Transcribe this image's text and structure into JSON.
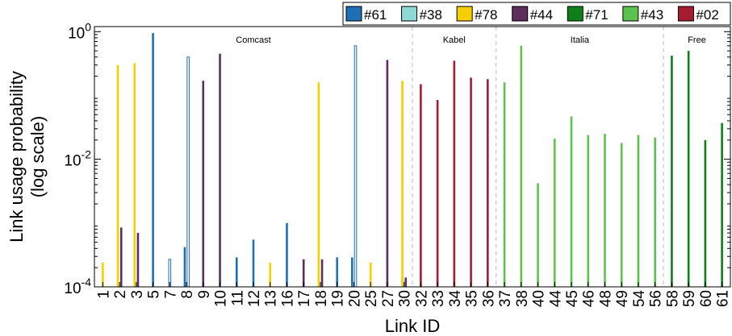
{
  "chart_data": {
    "type": "bar",
    "xlabel": "Link ID",
    "ylabel_lines": [
      "Link usage probability",
      "(log scale)"
    ],
    "yscale": "log",
    "ylim": [
      0.0001,
      1.2
    ],
    "y_ticks": [
      {
        "value": 0.0001,
        "base": "10",
        "exp": "-4"
      },
      {
        "value": 0.01,
        "base": "10",
        "exp": "-2"
      },
      {
        "value": 1,
        "base": "10",
        "exp": "0"
      }
    ],
    "categories": [
      "1",
      "2",
      "3",
      "5",
      "7",
      "8",
      "9",
      "10",
      "11",
      "12",
      "13",
      "16",
      "17",
      "18",
      "19",
      "20",
      "25",
      "27",
      "30",
      "32",
      "33",
      "34",
      "35",
      "36",
      "37",
      "38",
      "40",
      "44",
      "45",
      "46",
      "48",
      "49",
      "54",
      "56",
      "58",
      "59",
      "60",
      "61"
    ],
    "regions": [
      {
        "label": "Comcast",
        "start": "1",
        "end": "30"
      },
      {
        "label": "Kabel",
        "start": "32",
        "end": "36"
      },
      {
        "label": "Italia",
        "start": "37",
        "end": "56"
      },
      {
        "label": "Free",
        "start": "58",
        "end": "61"
      }
    ],
    "series": [
      {
        "name": "#61",
        "color": "#1f6fb4",
        "fill": "solid",
        "values": {
          "5": 0.95,
          "8": 0.00042,
          "11": 0.00029,
          "12": 0.00055,
          "16": 0.001,
          "19": 0.00029,
          "20": 0.00029
        }
      },
      {
        "name": "#38",
        "color": "#1f6fb4",
        "fill": "hollow",
        "values": {
          "7": 0.00027,
          "8": 0.4,
          "20": 0.6
        }
      },
      {
        "name": "#78",
        "color": "#f5d000",
        "fill": "solid",
        "values": {
          "1": 0.00024,
          "2": 0.3,
          "3": 0.32,
          "13": 0.00024,
          "18": 0.16,
          "25": 0.00024,
          "30": 0.17
        }
      },
      {
        "name": "#44",
        "color": "#5b2e5b",
        "fill": "solid",
        "values": {
          "2": 0.00085,
          "3": 0.0007,
          "9": 0.17,
          "10": 0.45,
          "17": 0.00027,
          "18": 0.00027,
          "27": 0.36,
          "30": 0.00014
        }
      },
      {
        "name": "#71",
        "color": "#0f7f1a",
        "fill": "solid",
        "values": {
          "58": 0.42,
          "59": 0.5,
          "60": 0.02,
          "61": 0.037
        }
      },
      {
        "name": "#43",
        "color": "#5cc24e",
        "fill": "solid",
        "values": {
          "37": 0.16,
          "38": 0.6,
          "40": 0.0042,
          "44": 0.021,
          "45": 0.047,
          "46": 0.024,
          "48": 0.025,
          "49": 0.018,
          "54": 0.024,
          "56": 0.022
        }
      },
      {
        "name": "#02",
        "color": "#a51c30",
        "fill": "solid",
        "values": {
          "32": 0.15,
          "33": 0.085,
          "34": 0.35,
          "35": 0.19,
          "36": 0.18
        }
      }
    ],
    "legend_position": "top-right",
    "grid": false
  }
}
